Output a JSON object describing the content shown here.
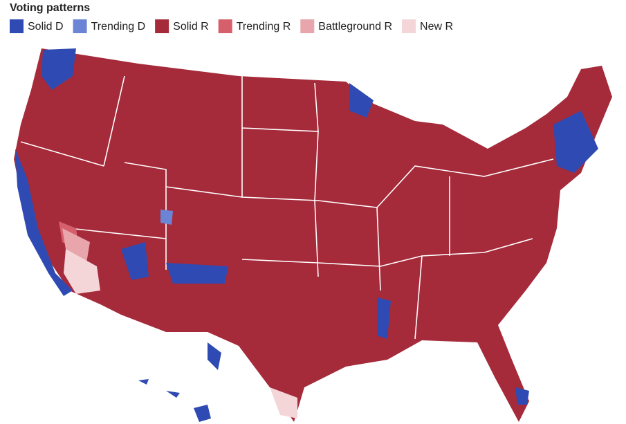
{
  "title": "Voting patterns",
  "legend": [
    {
      "label": "Solid D",
      "color": "#2f4bb3"
    },
    {
      "label": "Trending D",
      "color": "#6b84d6"
    },
    {
      "label": "Solid R",
      "color": "#a52a3a"
    },
    {
      "label": "Trending R",
      "color": "#d5606b"
    },
    {
      "label": "Battleground R",
      "color": "#e8a6ac"
    },
    {
      "label": "New R",
      "color": "#f4d6d9"
    }
  ]
}
